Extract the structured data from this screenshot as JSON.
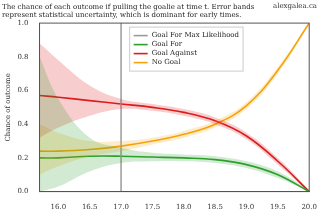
{
  "chart_data": {
    "type": "line",
    "title": [
      "The chance of each outcome if pulling the goalie at time t. Error bands",
      "represent statistical uncertainty, which is dominant for early times."
    ],
    "annotations": [
      "alexgalea.ca"
    ],
    "y_label": "Chance of outcome",
    "x": [
      15.7,
      16.0,
      16.5,
      17.0,
      17.5,
      18.0,
      18.5,
      19.0,
      19.5,
      20.0
    ],
    "xlim": [
      15.7,
      20.0
    ],
    "xticks": [
      {
        "value": 16,
        "label": "16.0"
      },
      {
        "value": 16.5,
        "label": "16.5"
      },
      {
        "value": 17,
        "label": "17.0"
      },
      {
        "value": 17.5,
        "label": "17.5"
      },
      {
        "value": 18,
        "label": "18.0"
      },
      {
        "value": 18.5,
        "label": "18.5"
      },
      {
        "value": 19,
        "label": "19.0"
      },
      {
        "value": 19.5,
        "label": "19.5"
      },
      {
        "value": 20,
        "label": "20.0"
      }
    ],
    "ylim": [
      0,
      1
    ],
    "yticks": [
      {
        "value": 0,
        "label": "0.0"
      },
      {
        "value": 0.2,
        "label": "0.2"
      },
      {
        "value": 0.4,
        "label": "0.4"
      },
      {
        "value": 0.6,
        "label": "0.6"
      },
      {
        "value": 0.8,
        "label": "0.8"
      },
      {
        "value": 1,
        "label": "1.0"
      }
    ],
    "grid": false,
    "legend": "upper center",
    "series": [
      {
        "name": "Goal For Max Likelihood",
        "type": "vline",
        "color": "#9a9a9a",
        "x": 17.0
      },
      {
        "name": "Goal For",
        "color": "#2ca02c",
        "values": [
          0.2,
          0.2,
          0.21,
          0.21,
          0.205,
          0.2,
          0.19,
          0.16,
          0.1,
          0.0
        ],
        "lower": [
          0.0,
          0.03,
          0.12,
          0.17,
          0.18,
          0.18,
          0.17,
          0.14,
          0.08,
          0.0
        ],
        "upper": [
          0.8,
          0.55,
          0.32,
          0.26,
          0.23,
          0.22,
          0.21,
          0.18,
          0.12,
          0.01
        ]
      },
      {
        "name": "Goal Against",
        "color": "#dd1c1c",
        "values": [
          0.57,
          0.56,
          0.54,
          0.52,
          0.5,
          0.47,
          0.42,
          0.33,
          0.18,
          0.0
        ],
        "lower": [
          0.32,
          0.38,
          0.45,
          0.49,
          0.48,
          0.45,
          0.4,
          0.31,
          0.16,
          0.0
        ],
        "upper": [
          0.88,
          0.78,
          0.63,
          0.55,
          0.52,
          0.49,
          0.44,
          0.35,
          0.2,
          0.01
        ]
      },
      {
        "name": "No Goal",
        "color": "#f5a20a",
        "values": [
          0.24,
          0.24,
          0.25,
          0.27,
          0.3,
          0.34,
          0.4,
          0.51,
          0.72,
          1.0
        ],
        "lower": [
          0.1,
          0.15,
          0.21,
          0.24,
          0.28,
          0.32,
          0.38,
          0.49,
          0.7,
          0.99
        ],
        "upper": [
          0.4,
          0.35,
          0.3,
          0.3,
          0.32,
          0.36,
          0.42,
          0.53,
          0.74,
          1.0
        ]
      }
    ]
  }
}
